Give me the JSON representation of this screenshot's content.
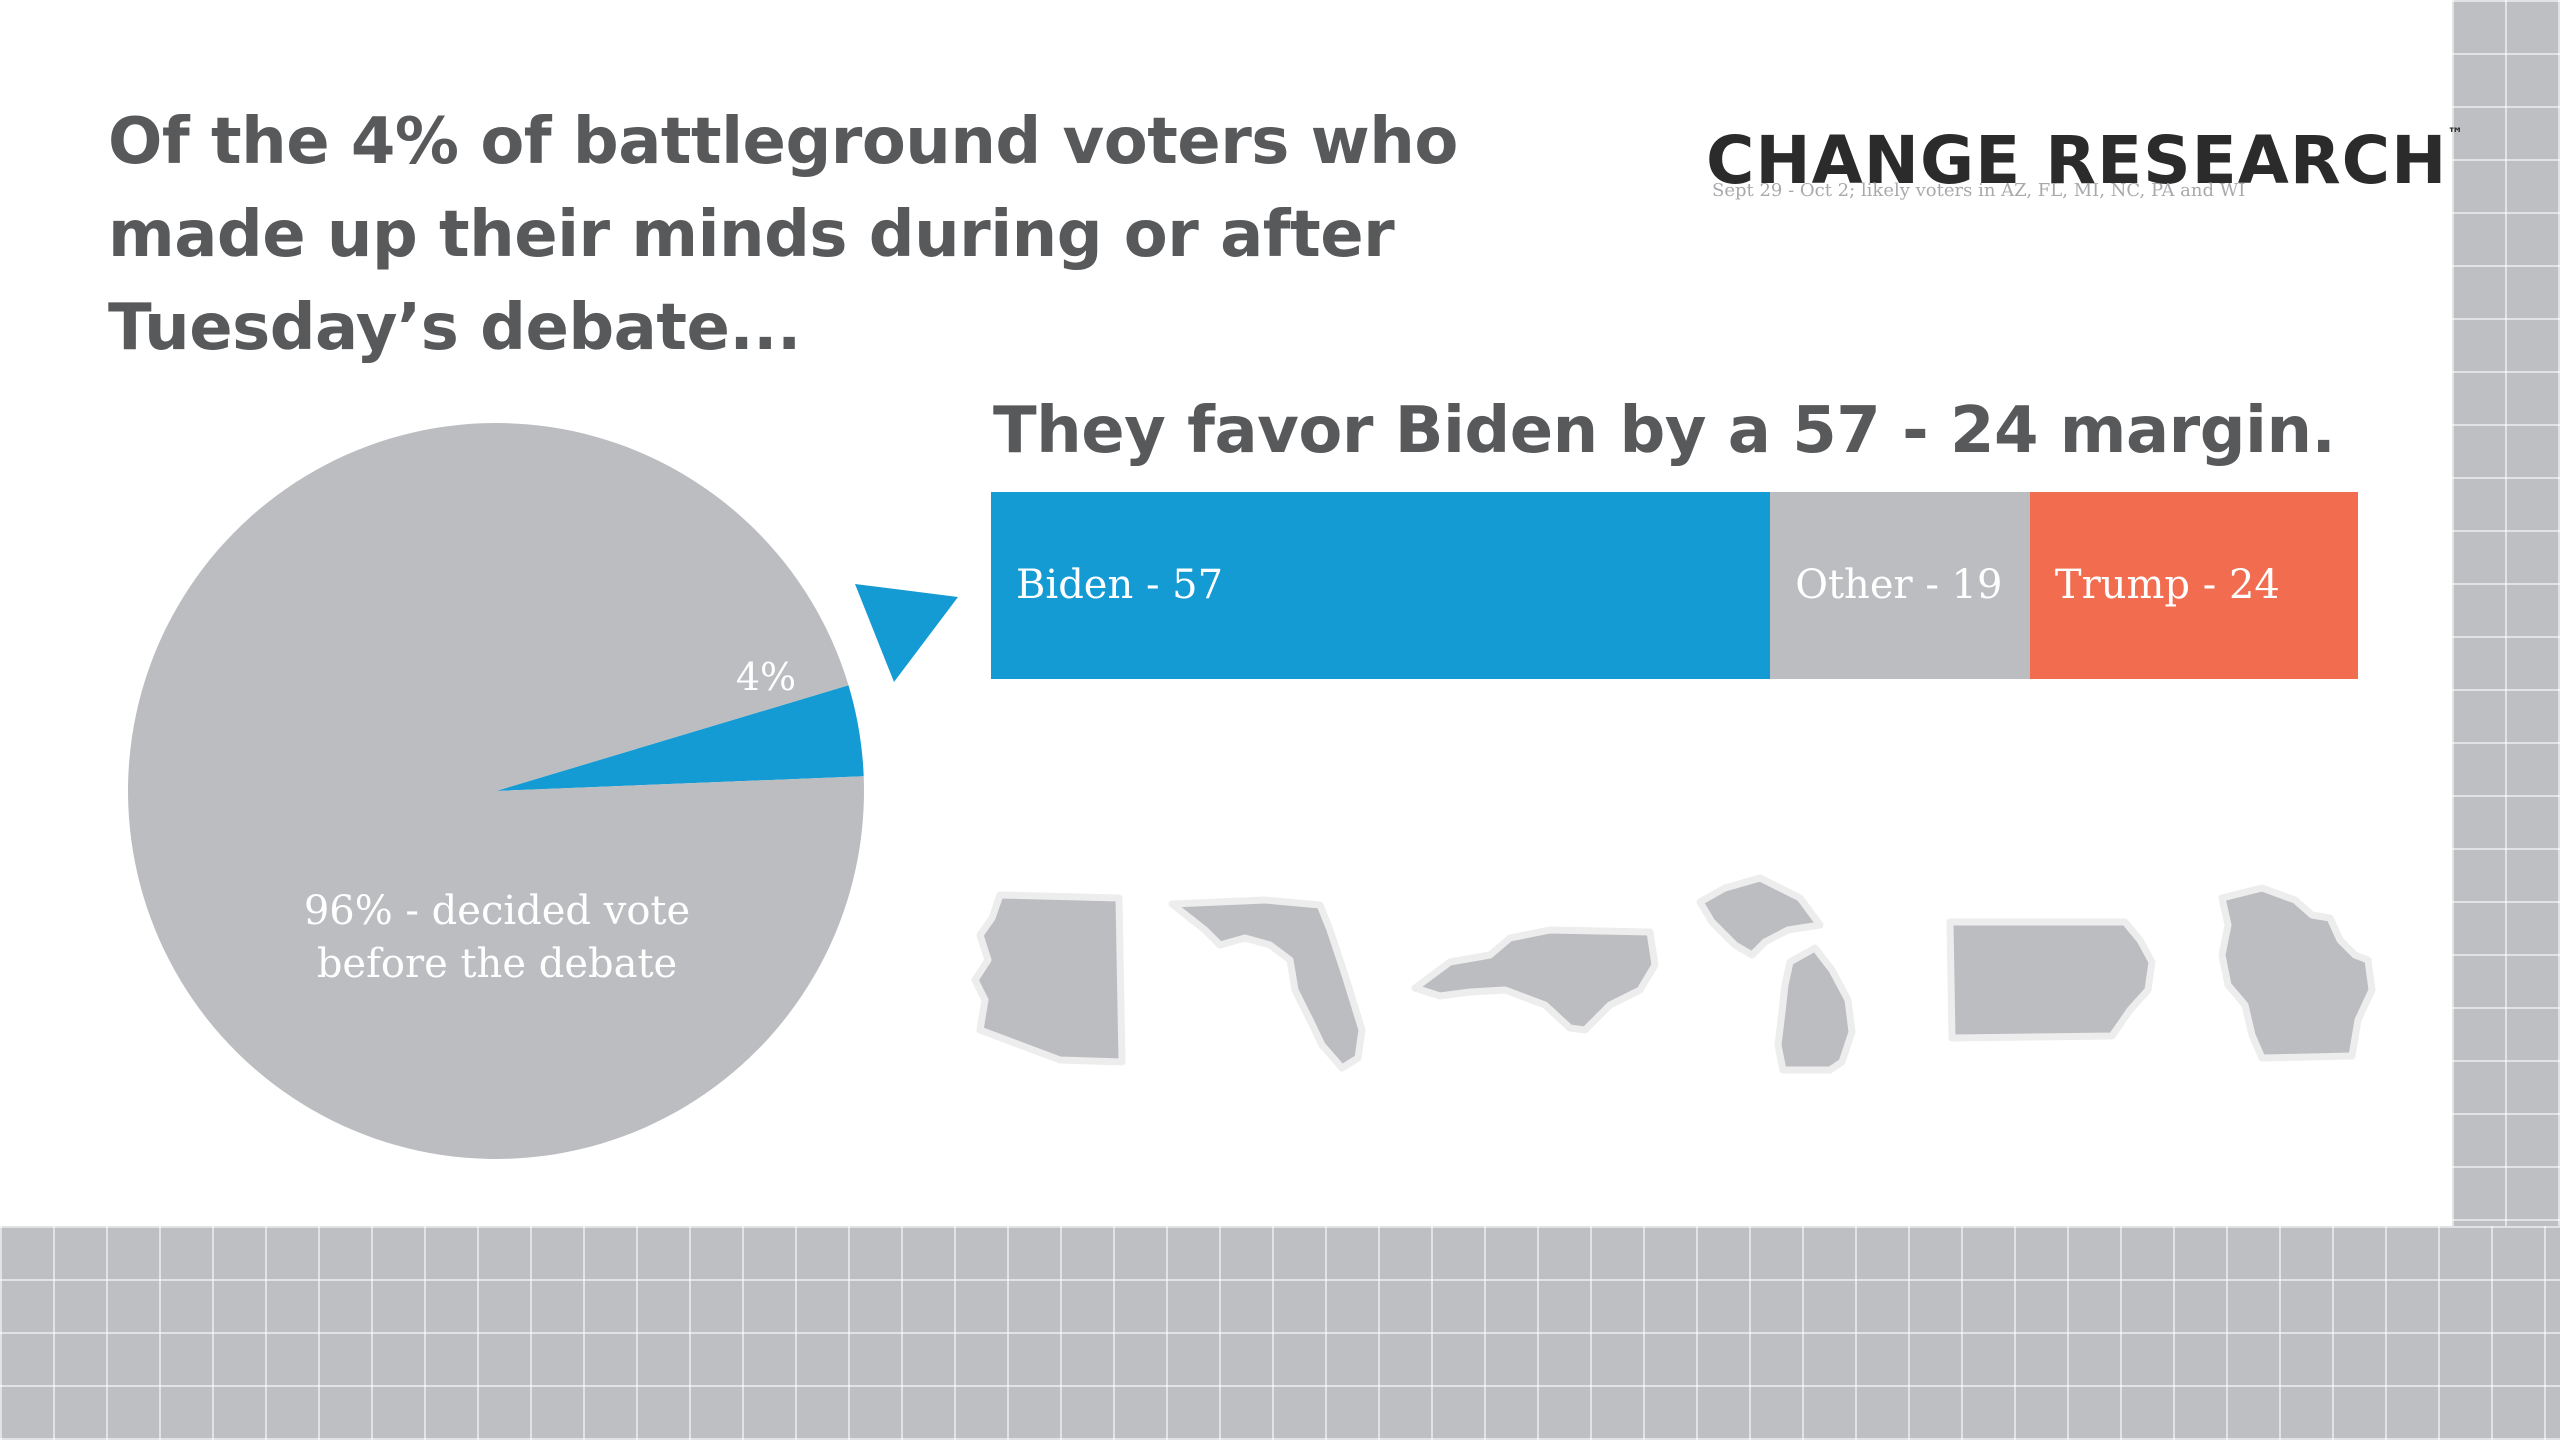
{
  "headline": {
    "line1": "Of the 4% of battleground voters who",
    "line2": "made up their minds during or after",
    "line3": "Tuesday’s debate..."
  },
  "logo": {
    "text": "CHANGE RESEARCH",
    "trademark": "™"
  },
  "source_note": "Sept 29 - Oct 2; likely voters in AZ, FL, MI, NC, PA and WI",
  "subhead": "They favor Biden by a 57 - 24 margin.",
  "colors": {
    "blue": "#159bd4",
    "gray": "#bcbdc0",
    "orange": "#f26c4f",
    "text_dark": "#58595b"
  },
  "state_icons": [
    "arizona-icon",
    "florida-icon",
    "north-carolina-icon",
    "michigan-icon",
    "pennsylvania-icon",
    "wisconsin-icon"
  ],
  "chart_data": [
    {
      "type": "pie",
      "slices": [
        {
          "label": "4%",
          "value": 4,
          "color": "#159bd4"
        },
        {
          "label": "96% - decided vote before the debate",
          "value": 96,
          "color": "#bcbdc0"
        }
      ],
      "labels": {
        "small": "4%",
        "large_line1": "96% - decided vote",
        "large_line2": "before the debate"
      }
    },
    {
      "type": "bar",
      "orientation": "horizontal",
      "stacked": true,
      "categories": [
        "Biden",
        "Other",
        "Trump"
      ],
      "values": [
        57,
        19,
        24
      ],
      "labels": [
        "Biden - 57",
        "Other - 19",
        "Trump - 24"
      ],
      "colors": [
        "#159bd4",
        "#bcbdc0",
        "#f26c4f"
      ],
      "total": 100
    }
  ]
}
